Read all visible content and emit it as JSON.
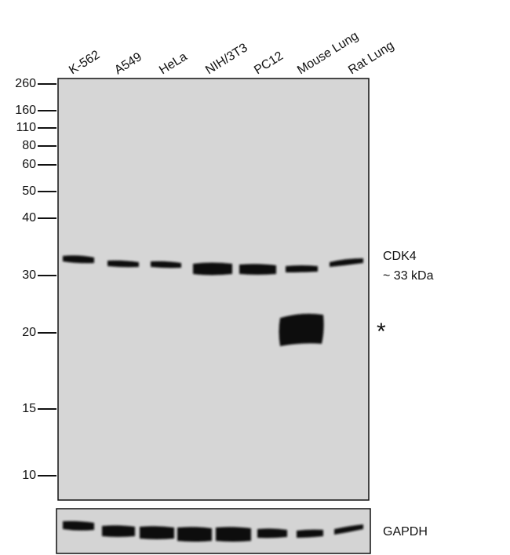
{
  "lanes": [
    "K-562",
    "A549",
    "HeLa",
    "NIH/3T3",
    "PC12",
    "Mouse Lung",
    "Rat Lung"
  ],
  "markers": [
    260,
    160,
    110,
    80,
    60,
    50,
    40,
    30,
    20,
    15,
    10
  ],
  "band_labels": {
    "target": "CDK4",
    "size": "~ 33 kDa",
    "nonspecific": "*",
    "loading_control": "GAPDH"
  }
}
